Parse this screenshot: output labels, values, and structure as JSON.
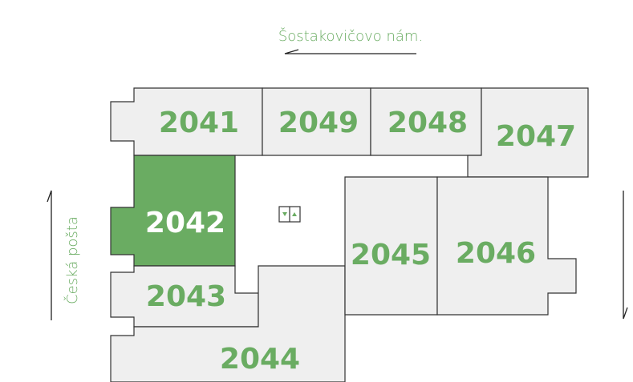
{
  "streets": {
    "top": "Šostakovičovo nám.",
    "left": "Česká pošta"
  },
  "rooms": [
    {
      "label": "2041",
      "selected": false
    },
    {
      "label": "2049",
      "selected": false
    },
    {
      "label": "2048",
      "selected": false
    },
    {
      "label": "2047",
      "selected": false
    },
    {
      "label": "2042",
      "selected": true
    },
    {
      "label": "2043",
      "selected": false
    },
    {
      "label": "2044",
      "selected": false
    },
    {
      "label": "2045",
      "selected": false
    },
    {
      "label": "2046",
      "selected": false
    }
  ]
}
